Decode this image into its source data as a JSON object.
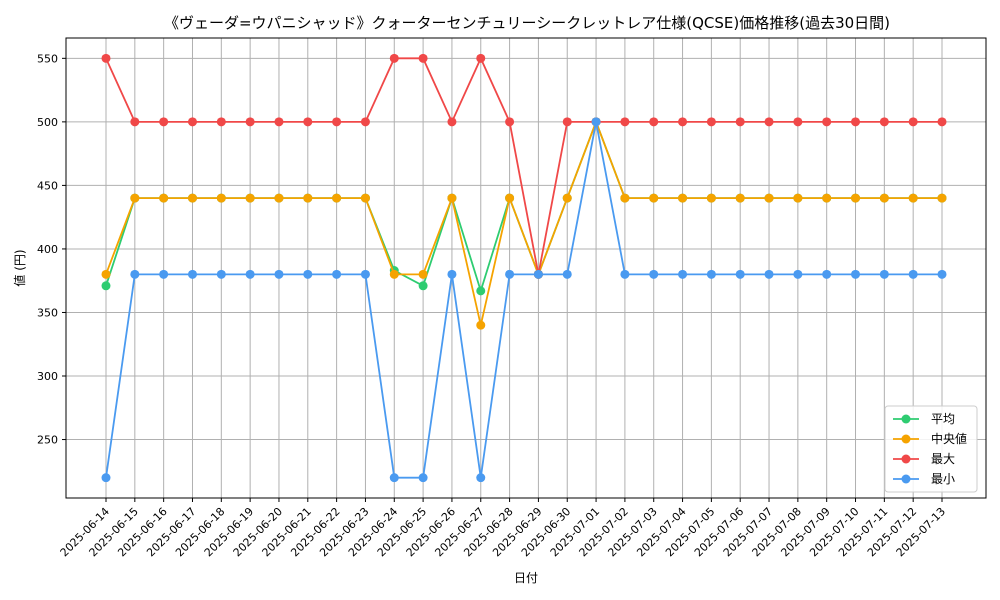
{
  "chart_data": {
    "type": "line",
    "title": "《ヴェーダ=ウパニシャッド》クォーターセンチュリーシークレットレア仕様(QCSE)価格推移(過去30日間)",
    "xlabel": "日付",
    "ylabel": "値 (円)",
    "ylim": [
      204,
      566
    ],
    "yticks": [
      250,
      300,
      350,
      400,
      450,
      500,
      550
    ],
    "grid": true,
    "legend_position": "lower-right",
    "categories": [
      "2025-06-14",
      "2025-06-15",
      "2025-06-16",
      "2025-06-17",
      "2025-06-18",
      "2025-06-19",
      "2025-06-20",
      "2025-06-21",
      "2025-06-22",
      "2025-06-23",
      "2025-06-24",
      "2025-06-25",
      "2025-06-26",
      "2025-06-27",
      "2025-06-28",
      "2025-06-29",
      "2025-06-30",
      "2025-07-01",
      "2025-07-02",
      "2025-07-03",
      "2025-07-04",
      "2025-07-05",
      "2025-07-06",
      "2025-07-07",
      "2025-07-08",
      "2025-07-09",
      "2025-07-10",
      "2025-07-11",
      "2025-07-12",
      "2025-07-13"
    ],
    "series": [
      {
        "name": "平均",
        "color": "#2ecc71",
        "values": [
          371,
          440,
          440,
          440,
          440,
          440,
          440,
          440,
          440,
          440,
          383,
          371,
          440,
          367,
          440,
          380,
          440,
          500,
          440,
          440,
          440,
          440,
          440,
          440,
          440,
          440,
          440,
          440,
          440,
          440
        ]
      },
      {
        "name": "中央値",
        "color": "#f5a300",
        "values": [
          380,
          440,
          440,
          440,
          440,
          440,
          440,
          440,
          440,
          440,
          380,
          380,
          440,
          340,
          440,
          380,
          440,
          500,
          440,
          440,
          440,
          440,
          440,
          440,
          440,
          440,
          440,
          440,
          440,
          440
        ]
      },
      {
        "name": "最大",
        "color": "#f04848",
        "values": [
          550,
          500,
          500,
          500,
          500,
          500,
          500,
          500,
          500,
          500,
          550,
          550,
          500,
          550,
          500,
          380,
          500,
          500,
          500,
          500,
          500,
          500,
          500,
          500,
          500,
          500,
          500,
          500,
          500,
          500
        ]
      },
      {
        "name": "最小",
        "color": "#4a9af0",
        "values": [
          220,
          380,
          380,
          380,
          380,
          380,
          380,
          380,
          380,
          380,
          220,
          220,
          380,
          220,
          380,
          380,
          380,
          500,
          380,
          380,
          380,
          380,
          380,
          380,
          380,
          380,
          380,
          380,
          380,
          380
        ]
      }
    ]
  }
}
